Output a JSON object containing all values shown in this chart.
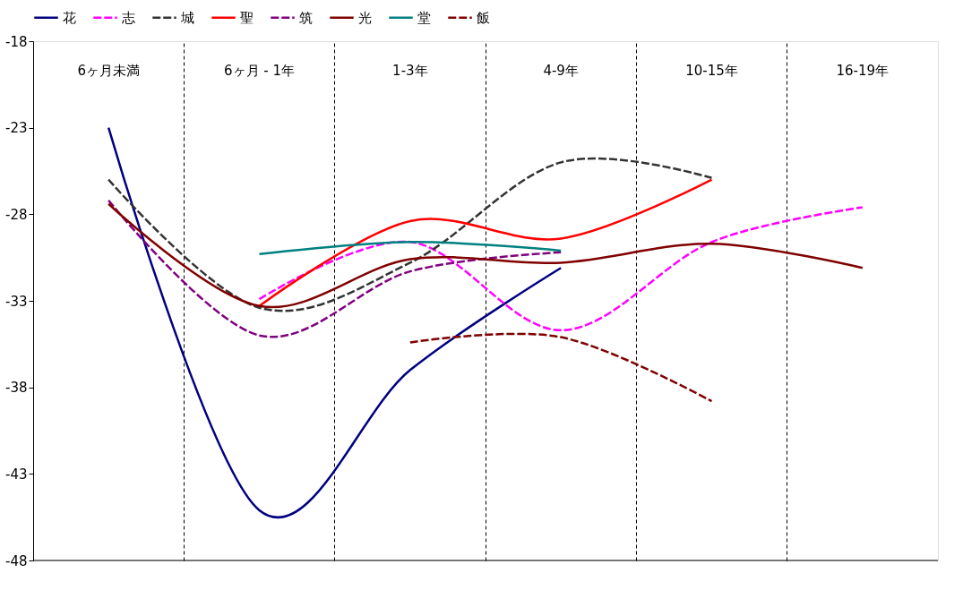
{
  "chart_data": {
    "type": "line",
    "categories": [
      "6ヶ月未満",
      "6ヶ月 - 1年",
      "1-3年",
      "4-9年",
      "10-15年",
      "16-19年"
    ],
    "series": [
      {
        "name": "花",
        "color": "#000080",
        "line_style": "solid",
        "values": [
          -23.0,
          -45.1,
          -37.0,
          -31.1,
          null,
          null
        ]
      },
      {
        "name": "志",
        "color": "#ff00ff",
        "line_style": "dashed",
        "values": [
          null,
          -32.9,
          -29.6,
          -34.7,
          -29.6,
          -27.6
        ]
      },
      {
        "name": "城",
        "color": "#333333",
        "line_style": "dashed",
        "values": [
          -26.0,
          -33.4,
          -30.8,
          -25.0,
          -25.9,
          null
        ]
      },
      {
        "name": "聖",
        "color": "#ff0000",
        "line_style": "solid",
        "values": [
          null,
          -33.3,
          -28.4,
          -29.4,
          -26.0,
          null
        ]
      },
      {
        "name": "筑",
        "color": "#800080",
        "line_style": "dashed",
        "values": [
          -27.2,
          -35.0,
          -31.3,
          -30.2,
          null,
          null
        ]
      },
      {
        "name": "光",
        "color": "#800000",
        "line_style": "solid",
        "values": [
          -27.4,
          -33.3,
          -30.6,
          -30.8,
          -29.7,
          -31.1
        ]
      },
      {
        "name": "堂",
        "color": "#008080",
        "line_style": "solid",
        "values": [
          null,
          -30.3,
          -29.6,
          -30.1,
          null,
          null
        ]
      },
      {
        "name": "飯",
        "color": "#800000",
        "line_style": "dashed",
        "values": [
          null,
          null,
          -35.4,
          -35.1,
          -38.8,
          null
        ]
      }
    ],
    "ylim": [
      -48,
      -18
    ],
    "yticks": [
      -48,
      -43,
      -38,
      -33,
      -28,
      -23,
      -18
    ],
    "grid": "x",
    "legend": "top",
    "marker": "none"
  }
}
